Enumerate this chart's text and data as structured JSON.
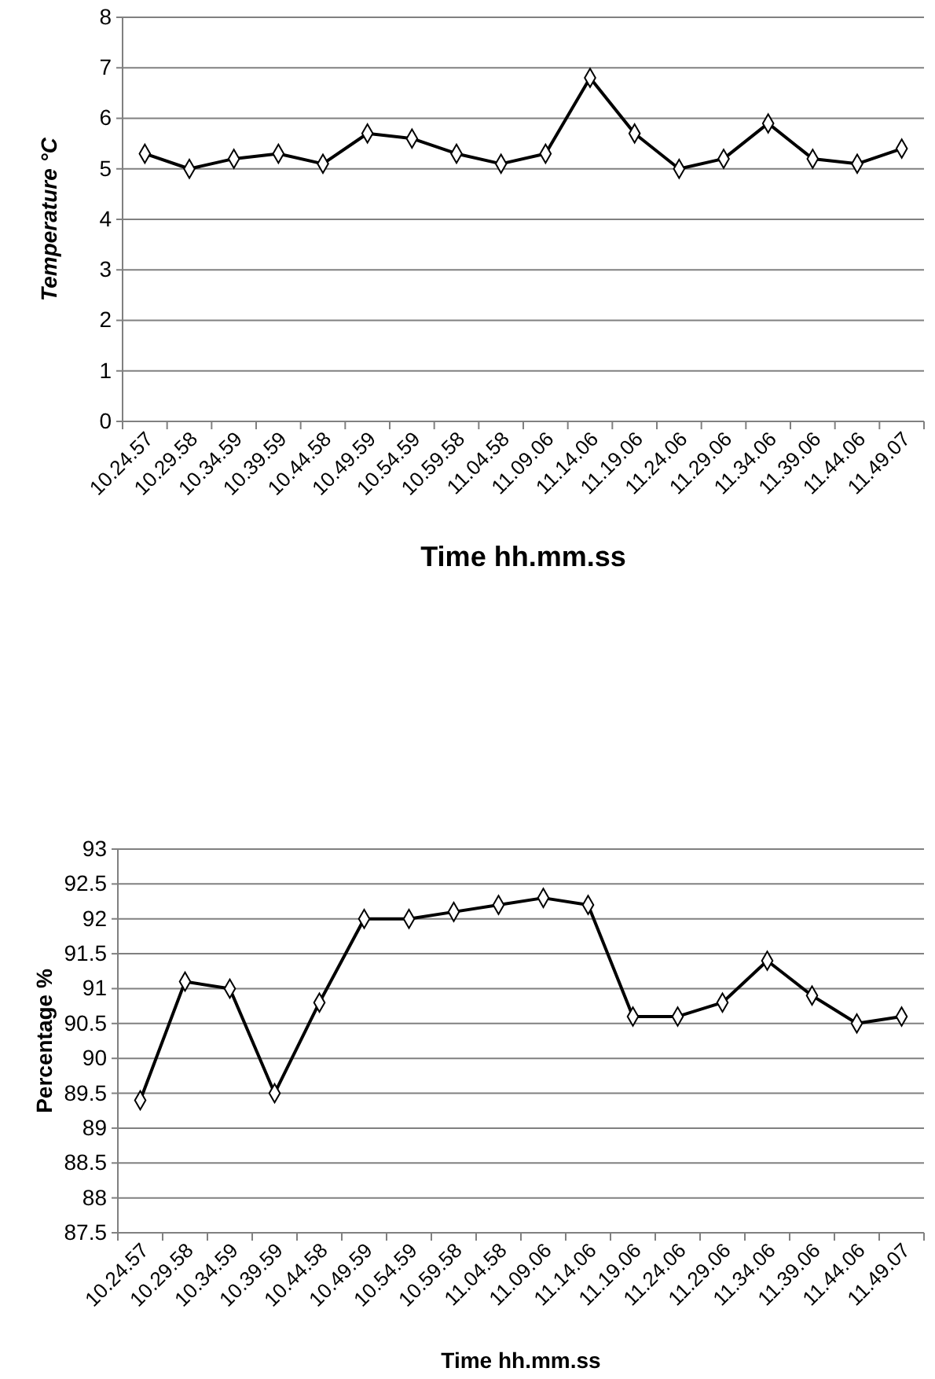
{
  "chart_data": [
    {
      "type": "line",
      "ylabel": "Temperature  °C",
      "xlabel": "Time hh.mm.ss",
      "categories": [
        "10.24.57",
        "10.29.58",
        "10.34.59",
        "10.39.59",
        "10.44.58",
        "10.49.59",
        "10.54.59",
        "10.59.58",
        "11.04.58",
        "11.09.06",
        "11.14.06",
        "11.19.06",
        "11.24.06",
        "11.29.06",
        "11.34.06",
        "11.39.06",
        "11.44.06",
        "11.49.07"
      ],
      "series": [
        {
          "color": "#000000",
          "values": [
            5.3,
            5.0,
            5.2,
            5.3,
            5.1,
            5.7,
            5.6,
            5.3,
            5.1,
            5.3,
            6.8,
            5.7,
            5.0,
            5.2,
            5.9,
            5.2,
            5.1,
            5.4
          ]
        }
      ],
      "ylim": [
        0,
        8
      ],
      "yticks": [
        0,
        1,
        2,
        3,
        4,
        5,
        6,
        7,
        8
      ],
      "grid": "y",
      "marker": "diamond",
      "line_style": "solid"
    },
    {
      "type": "line",
      "ylabel": "Percentage %",
      "xlabel": "Time hh.mm.ss",
      "categories": [
        "10.24.57",
        "10.29.58",
        "10.34.59",
        "10.39.59",
        "10.44.58",
        "10.49.59",
        "10.54.59",
        "10.59.58",
        "11.04.58",
        "11.09.06",
        "11.14.06",
        "11.19.06",
        "11.24.06",
        "11.29.06",
        "11.34.06",
        "11.39.06",
        "11.44.06",
        "11.49.07"
      ],
      "series": [
        {
          "color": "#000000",
          "values": [
            89.4,
            91.1,
            91.0,
            89.5,
            90.8,
            92.0,
            92.0,
            92.1,
            92.2,
            92.3,
            92.2,
            90.6,
            90.6,
            90.8,
            91.4,
            90.9,
            90.5,
            90.6
          ]
        }
      ],
      "ylim": [
        87.5,
        93
      ],
      "yticks": [
        87.5,
        88,
        88.5,
        89,
        89.5,
        90,
        90.5,
        91,
        91.5,
        92,
        92.5,
        93
      ],
      "grid": "y",
      "marker": "diamond",
      "line_style": "solid"
    }
  ]
}
